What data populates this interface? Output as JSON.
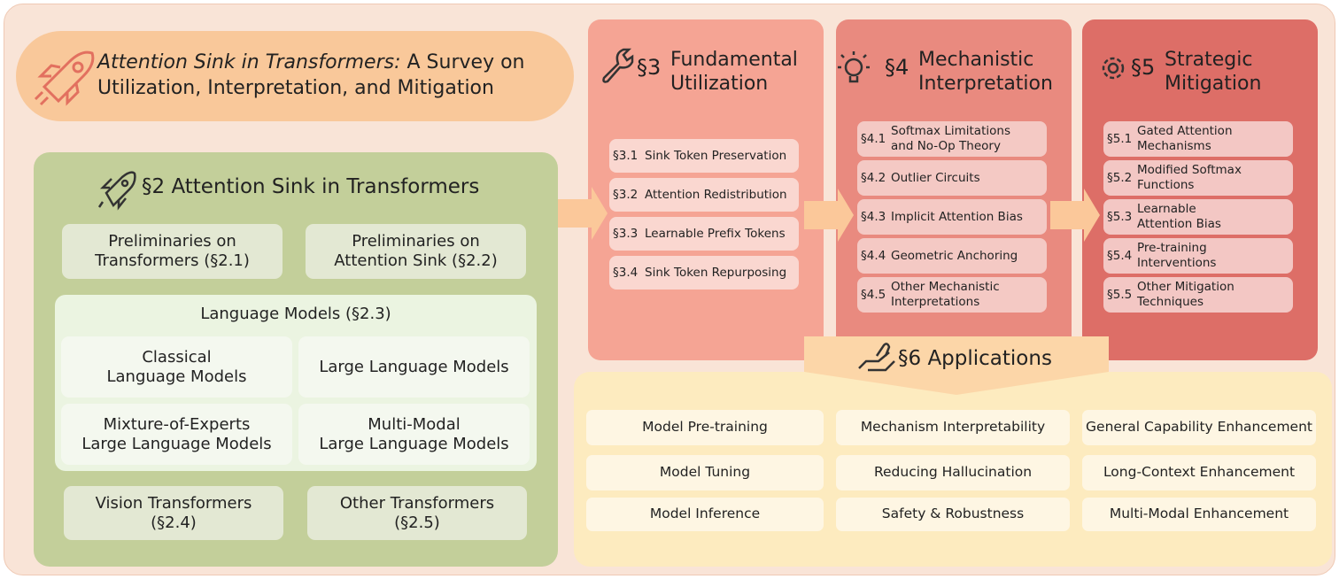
{
  "title": {
    "emphasis": "Attention Sink in Transformers:",
    "rest": "A Survey on\nUtilization, Interpretation, and Mitigation"
  },
  "section2": {
    "header": "§2 Attention Sink in Transformers",
    "preliminaries": [
      "Preliminaries on\nTransformers (§2.1)",
      "Preliminaries on\nAttention Sink (§2.2)"
    ],
    "language_models": {
      "title": "Language Models (§2.3)",
      "items": [
        "Classical\nLanguage Models",
        "Large Language Models",
        "Mixture-of-Experts\nLarge Language Models",
        "Multi-Modal\nLarge Language Models"
      ]
    },
    "other": [
      "Vision Transformers\n(§2.4)",
      "Other Transformers\n(§2.5)"
    ]
  },
  "sections": [
    {
      "number": "§3",
      "title": "Fundamental\nUtilization",
      "items": [
        {
          "number": "§3.1",
          "label": "Sink Token Preservation"
        },
        {
          "number": "§3.2",
          "label": "Attention Redistribution"
        },
        {
          "number": "§3.3",
          "label": "Learnable Prefix Tokens"
        },
        {
          "number": "§3.4",
          "label": "Sink Token Repurposing"
        }
      ]
    },
    {
      "number": "§4",
      "title": "Mechanistic\nInterpretation",
      "items": [
        {
          "number": "§4.1",
          "label": "Softmax Limitations\nand No-Op Theory"
        },
        {
          "number": "§4.2",
          "label": "Outlier Circuits"
        },
        {
          "number": "§4.3",
          "label": "Implicit Attention Bias"
        },
        {
          "number": "§4.4",
          "label": "Geometric Anchoring"
        },
        {
          "number": "§4.5",
          "label": "Other Mechanistic\nInterpretations"
        }
      ]
    },
    {
      "number": "§5",
      "title": "Strategic\nMitigation",
      "items": [
        {
          "number": "§5.1",
          "label": "Gated Attention\nMechanisms"
        },
        {
          "number": "§5.2",
          "label": "Modified Softmax\nFunctions"
        },
        {
          "number": "§5.3",
          "label": "Learnable\nAttention Bias"
        },
        {
          "number": "§5.4",
          "label": "Pre-training\nInterventions"
        },
        {
          "number": "§5.5",
          "label": "Other Mitigation\nTechniques"
        }
      ]
    }
  ],
  "applications": {
    "header": "§6 Applications",
    "columns": [
      [
        "Model Pre-training",
        "Model Tuning",
        "Model Inference"
      ],
      [
        "Mechanism Interpretability",
        "Reducing Hallucination",
        "Safety & Robustness"
      ],
      [
        "General Capability Enhancement",
        "Long-Context Enhancement",
        "Multi-Modal Enhancement"
      ]
    ]
  }
}
